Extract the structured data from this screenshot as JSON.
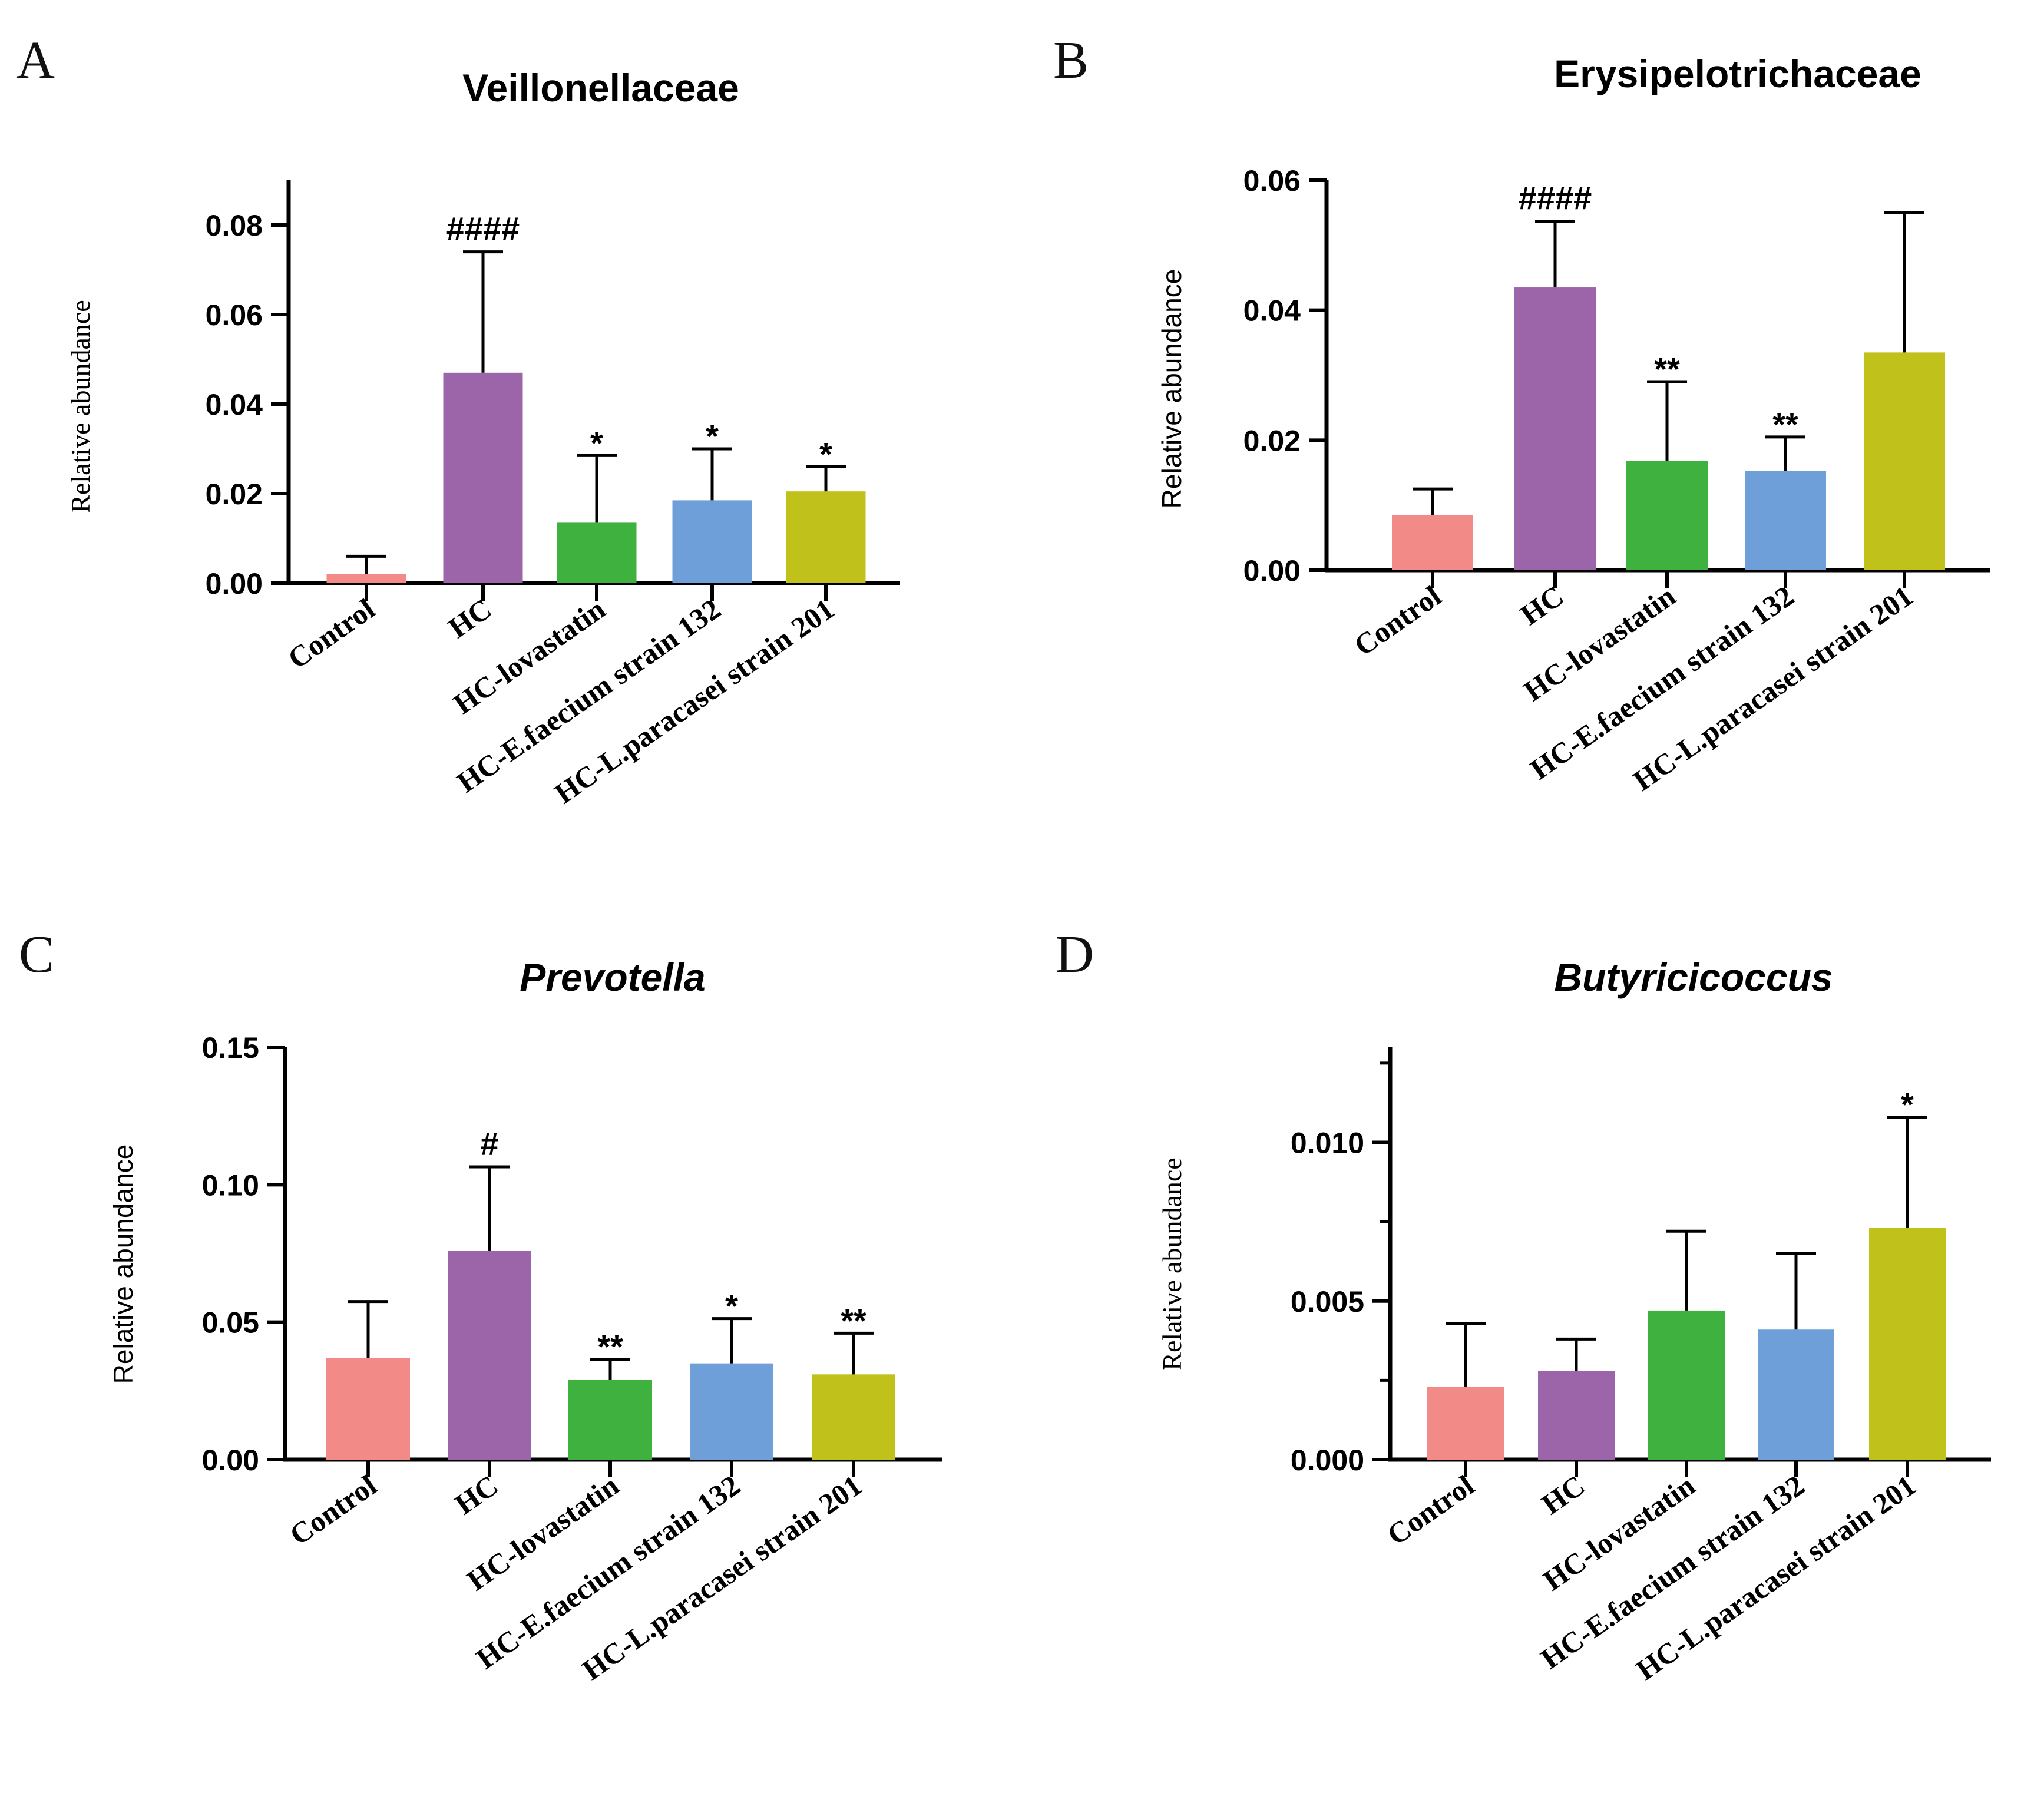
{
  "chart_data": [
    {
      "type": "bar",
      "panel": "A",
      "title": "Veillonellaceae",
      "title_italic": false,
      "ylabel": "Relative abundance",
      "ylim": [
        0,
        0.09
      ],
      "yticks": [
        "0.00",
        "0.02",
        "0.04",
        "0.06",
        "0.08"
      ],
      "categories": [
        "Control",
        "HC",
        "HC-lovastatin",
        "HC-E.faecium strain 132",
        "HC-L.paracasei strain 201"
      ],
      "values": [
        0.002,
        0.047,
        0.0135,
        0.0185,
        0.0205
      ],
      "errors": [
        0.004,
        0.027,
        0.015,
        0.0115,
        0.0055
      ],
      "significance": [
        "",
        "####",
        "*",
        "*",
        "*"
      ],
      "colors": [
        "#f28a87",
        "#9c65a9",
        "#3fb13f",
        "#6e9fd8",
        "#c0c11a"
      ]
    },
    {
      "type": "bar",
      "panel": "B",
      "title": "Erysipelotrichaceae",
      "title_italic": false,
      "ylabel": "Relative abundance",
      "ylim": [
        0,
        0.06
      ],
      "yticks": [
        "0.00",
        "0.02",
        "0.04",
        "0.06"
      ],
      "categories": [
        "Control",
        "HC",
        "HC-lovastatin",
        "HC-E.faecium strain 132",
        "HC-L.paracasei strain 201"
      ],
      "values": [
        0.0085,
        0.0435,
        0.0168,
        0.0153,
        0.0335
      ],
      "errors": [
        0.004,
        0.0102,
        0.0122,
        0.0052,
        0.0215
      ],
      "significance": [
        "",
        "####",
        "**",
        "**",
        ""
      ],
      "colors": [
        "#f28a87",
        "#9c65a9",
        "#3fb13f",
        "#6e9fd8",
        "#c0c11a"
      ]
    },
    {
      "type": "bar",
      "panel": "C",
      "title": "Prevotella",
      "title_italic": true,
      "ylabel": "Relative abundance",
      "ylim": [
        0,
        0.15
      ],
      "yticks": [
        "0.00",
        "0.05",
        "0.10",
        "0.15"
      ],
      "categories": [
        "Control",
        "HC",
        "HC-lovastatin",
        "HC-E.faecium strain 132",
        "HC-L.paracasei strain 201"
      ],
      "values": [
        0.037,
        0.076,
        0.029,
        0.035,
        0.031
      ],
      "errors": [
        0.0205,
        0.0305,
        0.0075,
        0.0163,
        0.015
      ],
      "significance": [
        "",
        "#",
        "**",
        "*",
        "**"
      ],
      "colors": [
        "#f28a87",
        "#9c65a9",
        "#3fb13f",
        "#6e9fd8",
        "#c0c11a"
      ]
    },
    {
      "type": "bar",
      "panel": "D",
      "title": "Butyricicoccus",
      "title_italic": true,
      "ylabel": "Relative abundance",
      "ylim": [
        0,
        0.013
      ],
      "yticks": [
        "0.000",
        "0.005",
        "0.010"
      ],
      "categories": [
        "Control",
        "HC",
        "HC-lovastatin",
        "HC-E.faecium strain 132",
        "HC-L.paracasei strain 201"
      ],
      "values": [
        0.0023,
        0.0028,
        0.0047,
        0.0041,
        0.0073
      ],
      "errors": [
        0.002,
        0.001,
        0.0025,
        0.0024,
        0.0035
      ],
      "significance": [
        "",
        "",
        "",
        "",
        "*"
      ],
      "colors": [
        "#f28a87",
        "#9c65a9",
        "#3fb13f",
        "#6e9fd8",
        "#c0c11a"
      ]
    }
  ]
}
